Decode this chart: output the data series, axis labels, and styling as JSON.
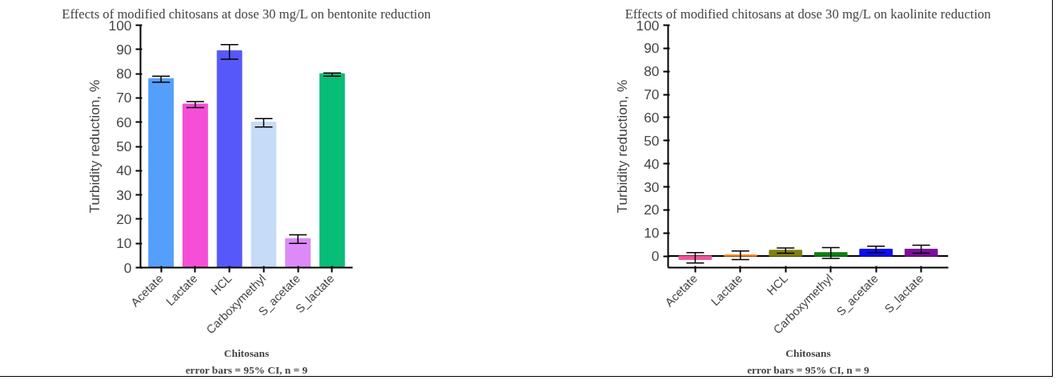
{
  "chart_data": [
    {
      "type": "bar",
      "title": "Effects of modified chitosans at dose 30 mg/L on bentonite reduction",
      "xlabel": "Chitosans",
      "ylabel": "Turbidity reduction, %",
      "annotations": [
        "error bars = 95% CI, n = 9"
      ],
      "categories": [
        "Acetate",
        "Lactate",
        "HCL",
        "Carboxymethyl",
        "S_acetate",
        "S_lactate"
      ],
      "values": [
        78,
        67.5,
        89.5,
        60,
        12,
        80
      ],
      "colors": [
        "#559ffc",
        "#f54fd7",
        "#5758f9",
        "#c6dbf7",
        "#dd8af8",
        "#07bd78"
      ],
      "errors": [
        [
          76.5,
          79
        ],
        [
          66,
          68.5
        ],
        [
          86,
          92
        ],
        [
          58,
          61.5
        ],
        [
          10,
          13.5
        ],
        [
          79,
          80.3
        ]
      ],
      "ylim": [
        0,
        100
      ],
      "yticks": [
        0,
        10,
        20,
        30,
        40,
        50,
        60,
        70,
        80,
        90,
        100
      ],
      "grid": false
    },
    {
      "type": "bar",
      "title": "Effects of modified chitosans at dose 30 mg/L on kaolinite reduction",
      "xlabel": "Chitosans",
      "ylabel": "Turbidity reduction, %",
      "annotations": [
        "error bars = 95% CI, n = 9"
      ],
      "categories": [
        "Acetate",
        "Lactate",
        "HCL",
        "Carboxymethyl",
        "S_acetate",
        "S_lactate"
      ],
      "values": [
        -1.5,
        0.5,
        2.5,
        1.5,
        3,
        3
      ],
      "colors": [
        "#f0559b",
        "#f98a1e",
        "#7f7f0e",
        "#0f7f0f",
        "#0c0cf5",
        "#7b0f9b"
      ],
      "errors": [
        [
          -3,
          1.5
        ],
        [
          -1.5,
          2.2
        ],
        [
          1.2,
          3.5
        ],
        [
          -1,
          3.7
        ],
        [
          1.5,
          4.3
        ],
        [
          1.2,
          4.7
        ]
      ],
      "ylim": [
        -5,
        100
      ],
      "yticks": [
        0,
        10,
        20,
        30,
        40,
        50,
        60,
        70,
        80,
        90,
        100
      ],
      "grid": false,
      "ref_lines": [
        {
          "axis": "y",
          "value": 0
        }
      ]
    }
  ]
}
